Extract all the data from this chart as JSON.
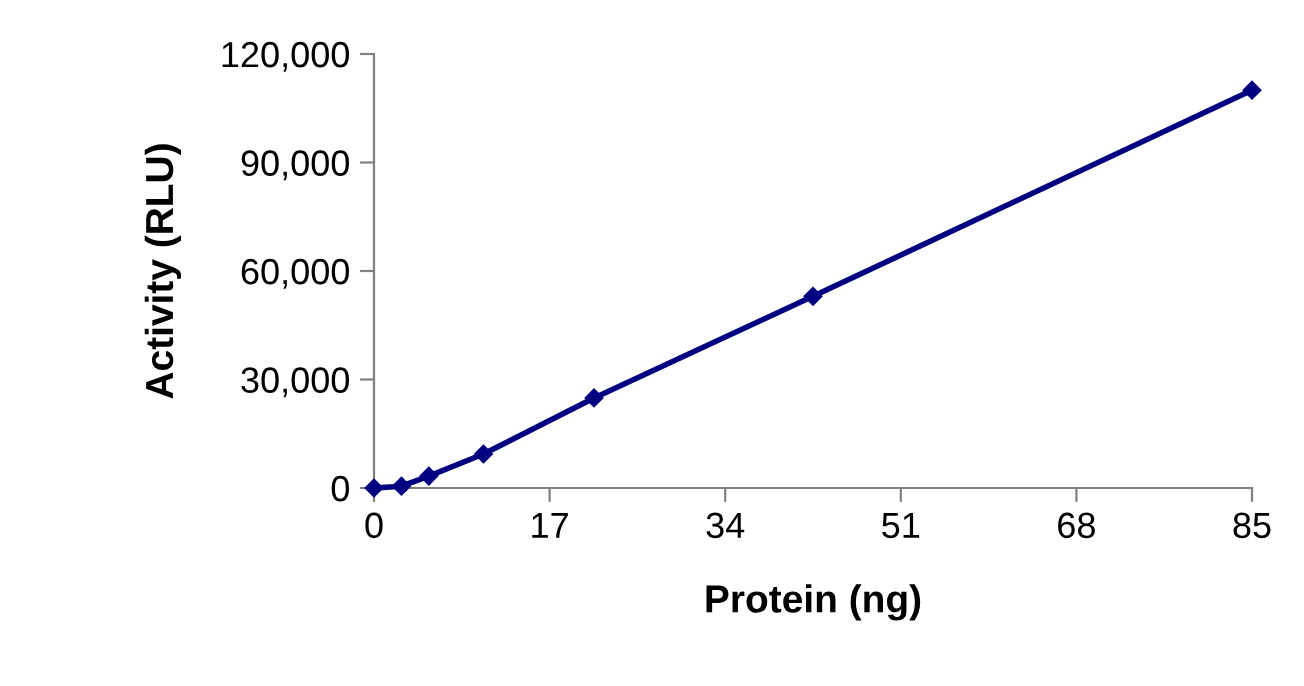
{
  "chart_data": {
    "type": "line",
    "xlabel": "Protein (ng)",
    "ylabel": "Activity (RLU)",
    "x": [
      0,
      2.66,
      5.31,
      10.6,
      21.3,
      42.5,
      85
    ],
    "series": [
      {
        "color": "#000080",
        "values": [
          0,
          500,
          3300,
          9400,
          24900,
          53000,
          110000
        ]
      }
    ],
    "xlim": [
      0,
      85
    ],
    "xticks": [
      0,
      17,
      34,
      51,
      68,
      85
    ],
    "ylim": [
      0,
      120000
    ],
    "yticks": [
      {
        "value": 0,
        "label": "0"
      },
      {
        "value": 30000,
        "label": "30,000"
      },
      {
        "value": 60000,
        "label": "60,000"
      },
      {
        "value": 90000,
        "label": "90,000"
      },
      {
        "value": 120000,
        "label": "120,000"
      }
    ],
    "grid": false,
    "legend": false,
    "marker": "diamond",
    "line_style": "solid"
  }
}
